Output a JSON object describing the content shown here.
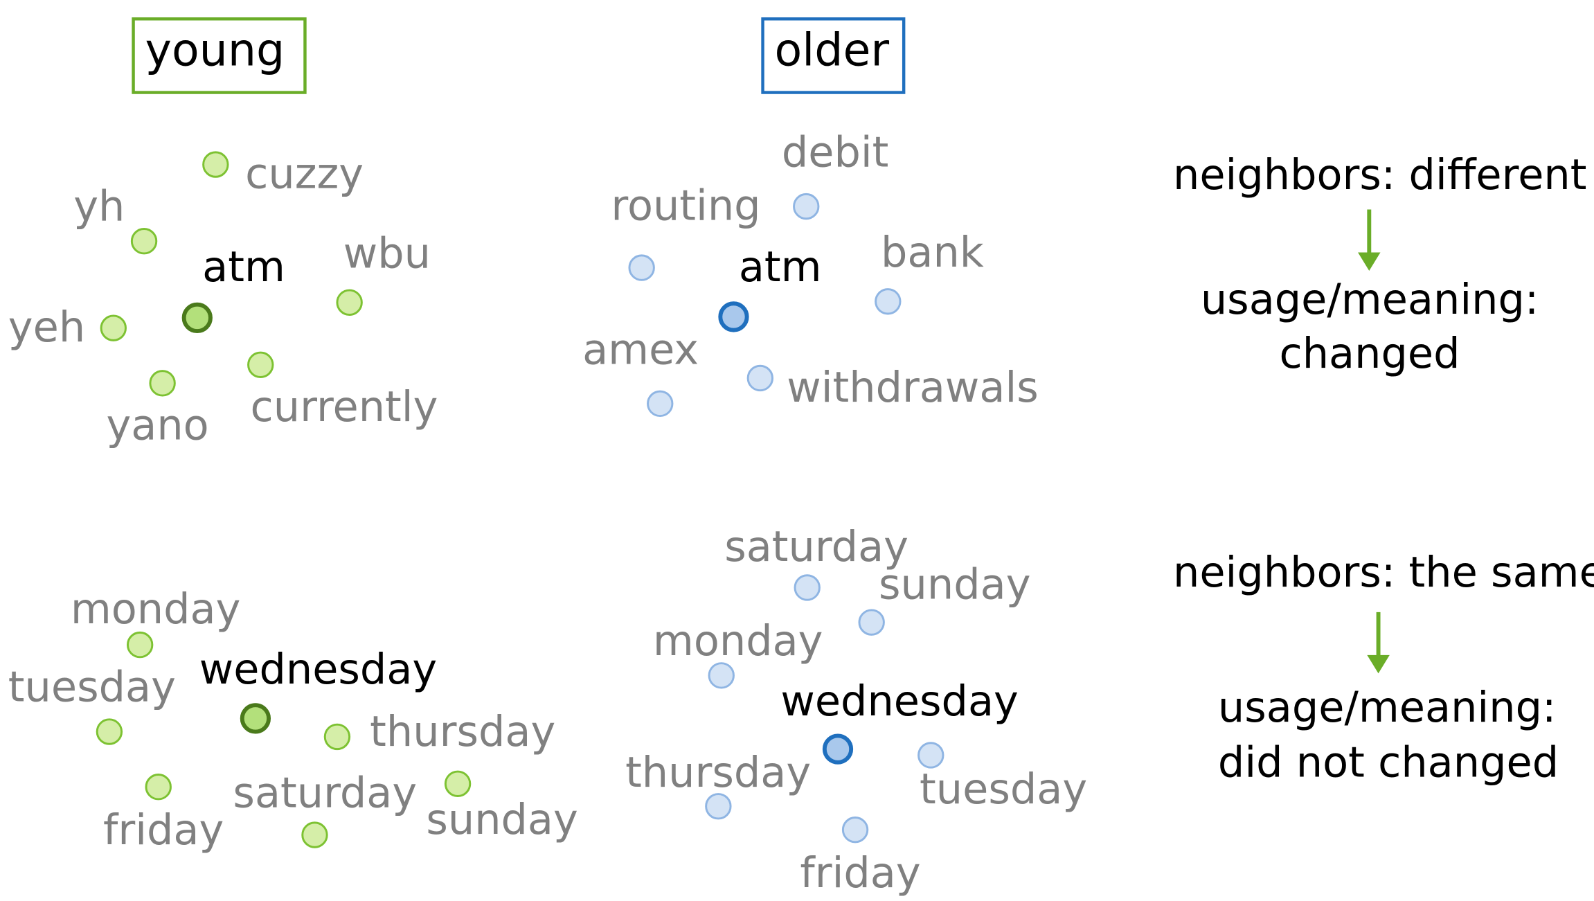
{
  "headers": {
    "young": "young",
    "older": "older"
  },
  "panels": {
    "young_atm": {
      "center": "atm",
      "neighbors": [
        "cuzzy",
        "yh",
        "wbu",
        "yeh",
        "currently",
        "yano"
      ]
    },
    "older_atm": {
      "center": "atm",
      "neighbors": [
        "debit",
        "routing",
        "bank",
        "amex",
        "withdrawals"
      ]
    },
    "young_wed": {
      "center": "wednesday",
      "neighbors": [
        "monday",
        "tuesday",
        "thursday",
        "saturday",
        "friday",
        "sunday"
      ]
    },
    "older_wed": {
      "center": "wednesday",
      "neighbors": [
        "saturday",
        "sunday",
        "monday",
        "thursday",
        "tuesday",
        "friday"
      ]
    }
  },
  "notes": {
    "top": {
      "line1": "neighbors: different",
      "line2": "usage/meaning:",
      "line3": "changed"
    },
    "bottom": {
      "line1": "neighbors: the same",
      "line2": "usage/meaning:",
      "line3": "did not changed"
    }
  },
  "colors": {
    "young": "#6aad28",
    "older": "#1f6fbe",
    "neighbor_text": "#808080",
    "arrow": "#6aad28"
  }
}
